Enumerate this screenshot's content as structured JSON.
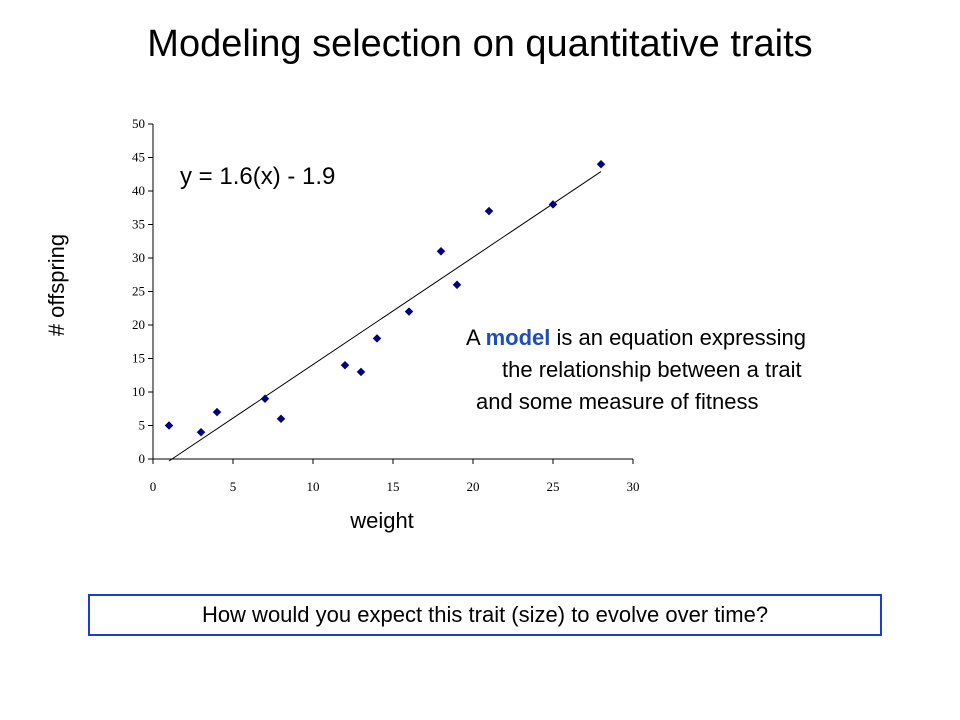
{
  "slide": {
    "title": "Modeling selection on quantitative traits",
    "note": {
      "prefix": "A ",
      "highlight": "model",
      "line1_rest": " is an equation expressing",
      "line2": "the relationship between a trait",
      "line3": "and some measure of fitness"
    },
    "question": "How would you expect this trait (size) to evolve over time?",
    "highlight_color": "#1f4fb5",
    "box_color": "#1a3fcf"
  },
  "chart_data": {
    "type": "scatter",
    "xlabel": "weight",
    "ylabel": "# offspring",
    "xlim": [
      0,
      30
    ],
    "ylim": [
      0,
      50
    ],
    "xticks": [
      0,
      5,
      10,
      15,
      20,
      25,
      30
    ],
    "yticks": [
      0,
      5,
      10,
      15,
      20,
      25,
      30,
      35,
      40,
      45,
      50
    ],
    "grid": false,
    "marker_color": "#000080",
    "points": [
      {
        "x": 1,
        "y": 5
      },
      {
        "x": 3,
        "y": 4
      },
      {
        "x": 4,
        "y": 7
      },
      {
        "x": 7,
        "y": 9
      },
      {
        "x": 8,
        "y": 6
      },
      {
        "x": 12,
        "y": 14
      },
      {
        "x": 13,
        "y": 13
      },
      {
        "x": 14,
        "y": 18
      },
      {
        "x": 16,
        "y": 22
      },
      {
        "x": 18,
        "y": 31
      },
      {
        "x": 19,
        "y": 26
      },
      {
        "x": 21,
        "y": 37
      },
      {
        "x": 25,
        "y": 38
      },
      {
        "x": 28,
        "y": 44
      }
    ],
    "trendline": {
      "equation": "y = 1.6(x) - 1.9",
      "slope": 1.6,
      "intercept": -1.9,
      "x_range": [
        1,
        28
      ]
    }
  }
}
